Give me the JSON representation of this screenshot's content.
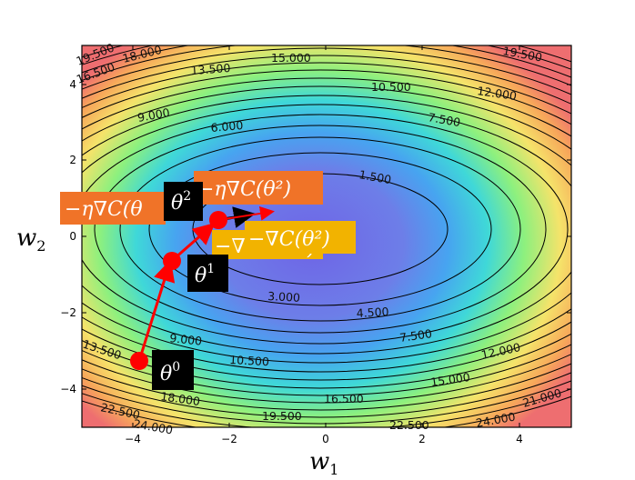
{
  "axes": {
    "xlabel_main": "w",
    "xlabel_sub": "1",
    "ylabel_main": "w",
    "ylabel_sub": "2",
    "xlim": [
      -5,
      5
    ],
    "ylim": [
      -5,
      5
    ],
    "x_ticks": [
      "−4",
      "−2",
      "0",
      "2",
      "4"
    ],
    "y_ticks": [
      "4",
      "2",
      "0",
      "−2",
      "−4"
    ]
  },
  "contour_labels": [
    "19.500",
    "18.000",
    "16.500",
    "15.000",
    "13.500",
    "19.500",
    "10.500",
    "12.000",
    "9.000",
    "7.500",
    "6.000",
    "1.500",
    "3.000",
    "4.500",
    "7.500",
    "9.000",
    "10.500",
    "12.000",
    "13.500",
    "15.000",
    "16.500",
    "18.000",
    "19.500",
    "21.000",
    "22.500",
    "24.000",
    "22.500",
    "24.000"
  ],
  "points": [
    {
      "name": "θ",
      "sup": "0"
    },
    {
      "name": "θ",
      "sup": "1"
    },
    {
      "name": "θ",
      "sup": "2"
    }
  ],
  "annotations": {
    "neg_eta_grad_left": "−η∇C(θ",
    "neg_eta_grad_right": "−η∇C(θ²)",
    "neg_grad_hidden": "−∇",
    "neg_grad_hidden_tail": ")",
    "neg_grad": "−∇C(θ²)"
  },
  "colors": {
    "path": "#ff0000",
    "arrow_black": "#000000",
    "orange_box": "#f07328",
    "yellow_box": "#f2b300",
    "label_box": "#000000"
  }
}
